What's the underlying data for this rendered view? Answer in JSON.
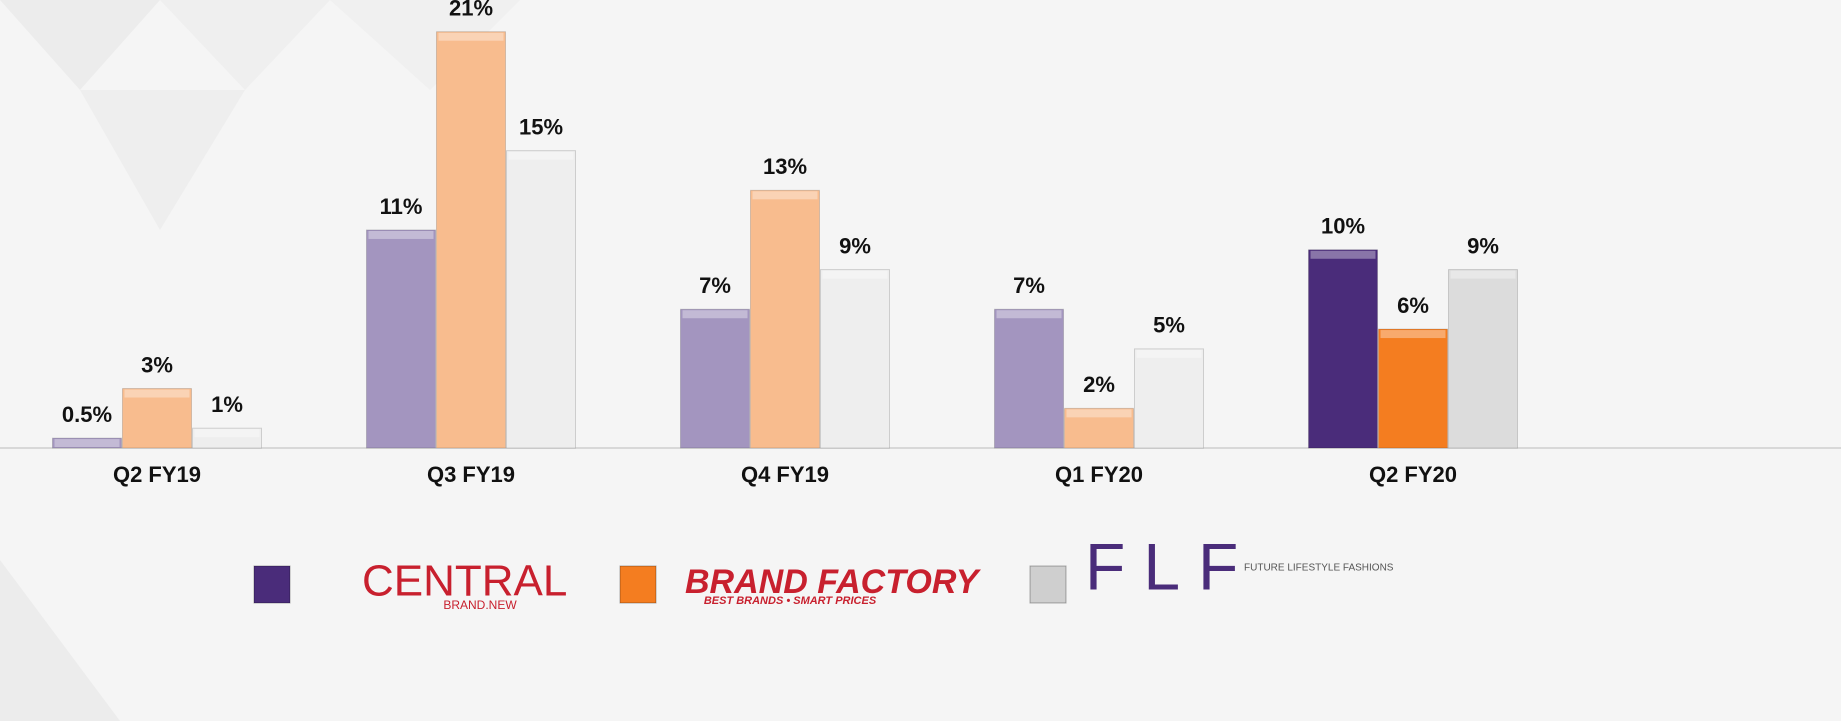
{
  "chart_data": {
    "type": "bar",
    "categories": [
      "Q2 FY19",
      "Q3 FY19",
      "Q4 FY19",
      "Q1 FY20",
      "Q2 FY20"
    ],
    "ylim": [
      0,
      22.6
    ],
    "series": [
      {
        "name": "CENTRAL",
        "tagline": "BRAND.NEW",
        "color": "#4a2c7a",
        "colors": [
          "#a395bf",
          "#a395bf",
          "#a395bf",
          "#a395bf",
          "#4a2c7a"
        ],
        "values": [
          0.5,
          11,
          7,
          7,
          10
        ],
        "value_labels": [
          "0.5%",
          "11%",
          "7%",
          "7%",
          "10%"
        ]
      },
      {
        "name": "BRAND FACTORY",
        "tagline": "BEST BRANDS • SMART PRICES",
        "color": "#f47d20",
        "colors": [
          "#f8bc8e",
          "#f8bc8e",
          "#f8bc8e",
          "#f8bc8e",
          "#f47d20"
        ],
        "values": [
          3,
          21,
          13,
          2,
          6
        ],
        "value_labels": [
          "3%",
          "21%",
          "13%",
          "2%",
          "6%"
        ]
      },
      {
        "name": "FLF",
        "tagline": "FUTURE LIFESTYLE FASHIONS",
        "color": "#cfcfcf",
        "colors": [
          "#eeeeee",
          "#eeeeee",
          "#eeeeee",
          "#eeeeee",
          "#dcdcdc"
        ],
        "values": [
          1,
          15,
          9,
          5,
          9
        ],
        "value_labels": [
          "1%",
          "15%",
          "9%",
          "5%",
          "9%"
        ]
      }
    ]
  }
}
